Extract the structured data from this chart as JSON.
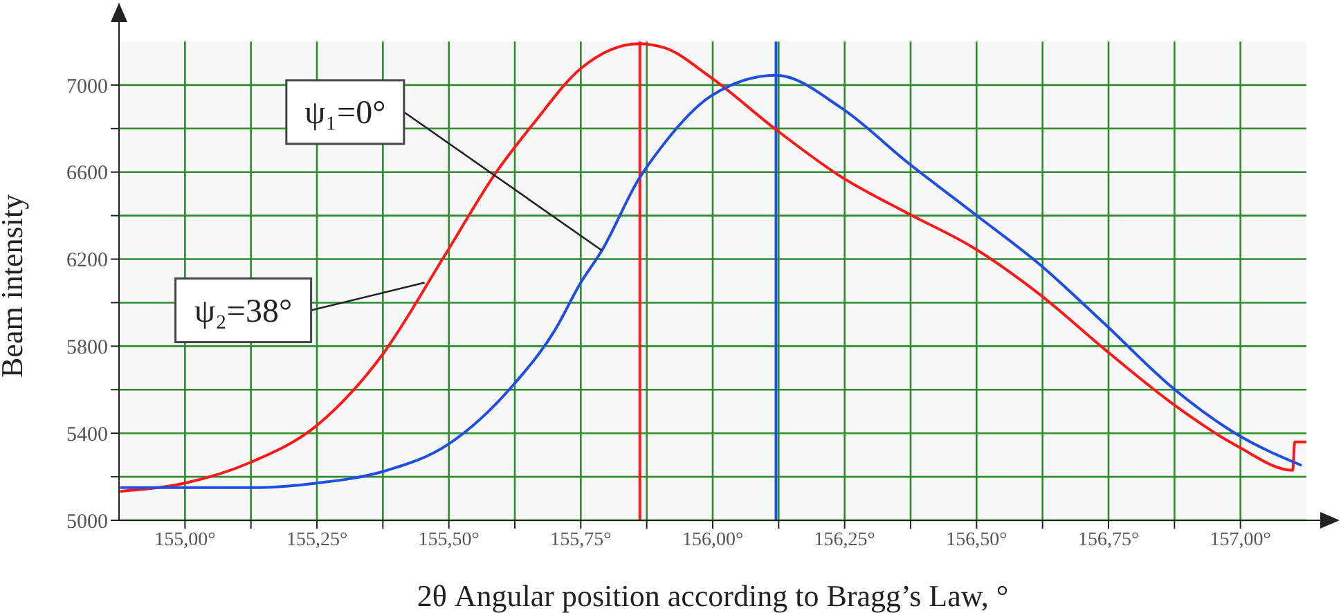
{
  "chart_data": {
    "type": "line",
    "xlabel": "2θ Angular position according to Bragg’s Law, °",
    "ylabel": "Beam intensity",
    "xlim": [
      154.875,
      157.125
    ],
    "xticks": [
      {
        "value": 155,
        "label": "155,00°"
      },
      {
        "value": 155.125,
        "label": null
      },
      {
        "value": 155.25,
        "label": "155,25°"
      },
      {
        "value": 155.375,
        "label": null
      },
      {
        "value": 155.5,
        "label": "155,50°"
      },
      {
        "value": 155.625,
        "label": null
      },
      {
        "value": 155.75,
        "label": "155,75°"
      },
      {
        "value": 155.875,
        "label": null
      },
      {
        "value": 156,
        "label": "156,00°"
      },
      {
        "value": 156.125,
        "label": null
      },
      {
        "value": 156.25,
        "label": "156,25°"
      },
      {
        "value": 156.375,
        "label": null
      },
      {
        "value": 156.5,
        "label": "156,50°"
      },
      {
        "value": 156.625,
        "label": null
      },
      {
        "value": 156.75,
        "label": "156,75°"
      },
      {
        "value": 156.875,
        "label": null
      },
      {
        "value": 157,
        "label": "157,00°"
      }
    ],
    "ylim": [
      5000,
      7200
    ],
    "yticks": [
      5000,
      {
        "value": 5200,
        "label": null
      },
      5400,
      {
        "value": 5600,
        "label": null
      },
      5800,
      {
        "value": 6000,
        "label": null
      },
      6200,
      {
        "value": 6400,
        "label": null
      },
      6600,
      {
        "value": 6800,
        "label": null
      },
      7000
    ],
    "grid": true,
    "legend": false,
    "marker": "none",
    "line_style": "solid",
    "series": [
      {
        "color": "#ff1a1a",
        "x": [
          154.877,
          155.0,
          155.125,
          155.25,
          155.375,
          155.49,
          155.59,
          155.66,
          155.75,
          155.86,
          155.908,
          155.997,
          156.12,
          156.243,
          156.37,
          156.495,
          156.619,
          156.743,
          156.868,
          156.994,
          157.099,
          157.103,
          157.125
        ],
        "values": [
          5133,
          5171,
          5267,
          5436,
          5764,
          6208,
          6600,
          6822,
          7076,
          7190,
          7172,
          7034,
          6795,
          6579,
          6410,
          6251,
          6039,
          5785,
          5542,
          5341,
          5230,
          5360,
          5360
        ]
      },
      {
        "color": "#1f4fe0",
        "x": [
          154.877,
          155.125,
          155.25,
          155.375,
          155.5,
          155.62,
          155.7,
          155.75,
          155.79,
          155.86,
          155.9,
          155.997,
          156.12,
          156.243,
          156.37,
          156.495,
          156.619,
          156.743,
          156.868,
          156.994,
          157.116
        ],
        "values": [
          5150,
          5150,
          5171,
          5224,
          5351,
          5616,
          5870,
          6092,
          6240,
          6568,
          6706,
          6950,
          7045,
          6896,
          6643,
          6410,
          6177,
          5902,
          5616,
          5394,
          5252
        ]
      }
    ],
    "ref_lines": [
      {
        "axis": "x",
        "value": 155.862,
        "color": "#ff1a1a"
      },
      {
        "axis": "x",
        "value": 156.12,
        "color": "#1f4fe0"
      }
    ],
    "annotations": [
      {
        "text": "ψ₁=0°",
        "x": 155.79,
        "y": 6240
      },
      {
        "text": "ψ₂=38°",
        "x": 155.454,
        "y": 6092
      }
    ]
  }
}
